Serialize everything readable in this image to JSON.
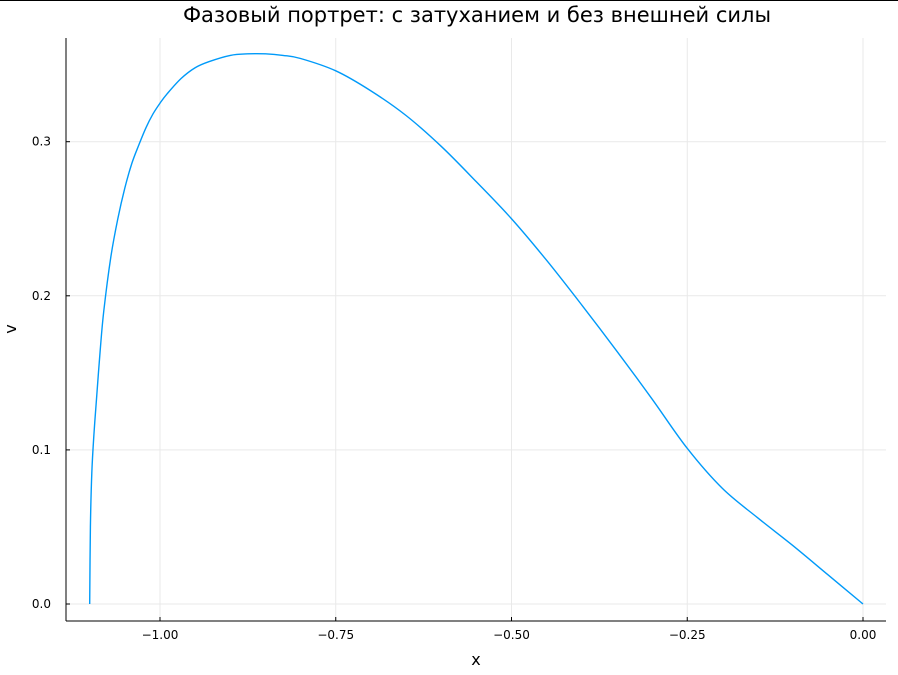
{
  "chart_data": {
    "type": "line",
    "title": "Фазовый портрет: с затуханием и без внешней силы",
    "xlabel": "x",
    "ylabel": "v",
    "xlim": [
      -1.1,
      0.0
    ],
    "ylim": [
      -0.01,
      0.368
    ],
    "grid": true,
    "legend": "none",
    "x_ticks": [
      -1.0,
      -0.75,
      -0.5,
      -0.25,
      0.0
    ],
    "x_tick_labels": [
      "−1.00",
      "−0.75",
      "−0.50",
      "−0.25",
      "0.00"
    ],
    "y_ticks": [
      0.0,
      0.1,
      0.2,
      0.3
    ],
    "y_tick_labels": [
      "0.0",
      "0.1",
      "0.2",
      "0.3"
    ],
    "series": [
      {
        "color": "#009af9",
        "x": [
          -1.1,
          -1.099,
          -1.097,
          -1.094,
          -1.09,
          -1.085,
          -1.08,
          -1.07,
          -1.06,
          -1.05,
          -1.04,
          -1.03,
          -1.02,
          -1.01,
          -1.0,
          -0.99,
          -0.97,
          -0.95,
          -0.93,
          -0.9,
          -0.875,
          -0.85,
          -0.825,
          -0.8,
          -0.75,
          -0.7,
          -0.65,
          -0.6,
          -0.55,
          -0.5,
          -0.45,
          -0.4,
          -0.35,
          -0.3,
          -0.25,
          -0.2,
          -0.15,
          -0.1,
          -0.05,
          0.0
        ],
        "y": [
          0.0,
          0.05,
          0.085,
          0.11,
          0.135,
          0.165,
          0.19,
          0.225,
          0.25,
          0.27,
          0.286,
          0.298,
          0.309,
          0.318,
          0.325,
          0.331,
          0.341,
          0.348,
          0.352,
          0.356,
          0.357,
          0.357,
          0.356,
          0.354,
          0.346,
          0.333,
          0.317,
          0.297,
          0.274,
          0.25,
          0.223,
          0.194,
          0.164,
          0.133,
          0.101,
          0.075,
          0.056,
          0.038,
          0.019,
          0.0
        ]
      }
    ]
  }
}
